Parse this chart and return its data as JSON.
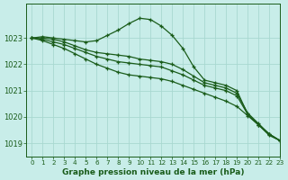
{
  "title": "Graphe pression niveau de la mer (hPa)",
  "background_color": "#c8ede9",
  "grid_color": "#a8d8d0",
  "text_color": "#1a5c1a",
  "line_color": "#1a5c1a",
  "xlim": [
    -0.5,
    23
  ],
  "ylim": [
    1018.5,
    1024.3
  ],
  "yticks": [
    1019,
    1020,
    1021,
    1022,
    1023
  ],
  "xticks": [
    0,
    1,
    2,
    3,
    4,
    5,
    6,
    7,
    8,
    9,
    10,
    11,
    12,
    13,
    14,
    15,
    16,
    17,
    18,
    19,
    20,
    21,
    22,
    23
  ],
  "series": [
    {
      "x": [
        0,
        1,
        2,
        3,
        4,
        5,
        6,
        7,
        8,
        9,
        10,
        11,
        12,
        13,
        14,
        15,
        16,
        17,
        18,
        19,
        20,
        21,
        22,
        23
      ],
      "y": [
        1023.0,
        1023.05,
        1023.0,
        1022.95,
        1022.9,
        1022.85,
        1022.9,
        1023.1,
        1023.3,
        1023.55,
        1023.75,
        1023.7,
        1023.45,
        1023.1,
        1022.6,
        1021.9,
        1021.4,
        1021.3,
        1021.2,
        1021.0,
        1020.1,
        1019.7,
        1019.3,
        1019.1
      ]
    },
    {
      "x": [
        0,
        1,
        2,
        3,
        4,
        5,
        6,
        7,
        8,
        9,
        10,
        11,
        12,
        13,
        14,
        15,
        16,
        17,
        18,
        19,
        20,
        21,
        22,
        23
      ],
      "y": [
        1023.0,
        1023.0,
        1022.95,
        1022.85,
        1022.7,
        1022.55,
        1022.45,
        1022.4,
        1022.35,
        1022.3,
        1022.2,
        1022.15,
        1022.1,
        1022.0,
        1021.8,
        1021.55,
        1021.3,
        1021.2,
        1021.1,
        1020.9,
        1020.15,
        1019.75,
        1019.35,
        1019.1
      ]
    },
    {
      "x": [
        0,
        1,
        2,
        3,
        4,
        5,
        6,
        7,
        8,
        9,
        10,
        11,
        12,
        13,
        14,
        15,
        16,
        17,
        18,
        19,
        20,
        21,
        22,
        23
      ],
      "y": [
        1023.0,
        1022.95,
        1022.85,
        1022.75,
        1022.6,
        1022.45,
        1022.3,
        1022.2,
        1022.1,
        1022.05,
        1022.0,
        1021.95,
        1021.9,
        1021.75,
        1021.6,
        1021.4,
        1021.2,
        1021.1,
        1021.0,
        1020.8,
        1020.1,
        1019.7,
        1019.35,
        1019.1
      ]
    },
    {
      "x": [
        0,
        1,
        2,
        3,
        4,
        5,
        6,
        7,
        8,
        9,
        10,
        11,
        12,
        13,
        14,
        15,
        16,
        17,
        18,
        19,
        20,
        21,
        22,
        23
      ],
      "y": [
        1023.0,
        1022.9,
        1022.75,
        1022.6,
        1022.4,
        1022.2,
        1022.0,
        1021.85,
        1021.7,
        1021.6,
        1021.55,
        1021.5,
        1021.45,
        1021.35,
        1021.2,
        1021.05,
        1020.9,
        1020.75,
        1020.6,
        1020.4,
        1020.05,
        1019.7,
        1019.35,
        1019.1
      ]
    }
  ]
}
